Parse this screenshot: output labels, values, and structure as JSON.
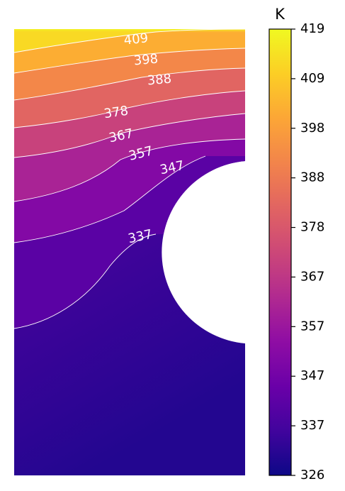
{
  "chart_data": {
    "type": "heatmap",
    "title": "",
    "xlabel": "",
    "ylabel": "",
    "colorbar": {
      "unit": "K",
      "range": [
        326,
        419
      ],
      "colormap": "plasma",
      "ticks": [
        "326",
        "337",
        "347",
        "357",
        "367",
        "378",
        "388",
        "398",
        "409",
        "419"
      ]
    },
    "field": {
      "hole": "semicircular cutout on the right edge",
      "temperature_top": 419,
      "temperature_bottom": 326
    },
    "contours": [
      {
        "level": 337,
        "label": "337"
      },
      {
        "level": 347,
        "label": "347"
      },
      {
        "level": 357,
        "label": "357"
      },
      {
        "level": 367,
        "label": "367"
      },
      {
        "level": 378,
        "label": "378"
      },
      {
        "level": 388,
        "label": "388"
      },
      {
        "level": 398,
        "label": "398"
      },
      {
        "level": 409,
        "label": "409"
      }
    ],
    "grid": false,
    "legend": "colorbar right"
  }
}
